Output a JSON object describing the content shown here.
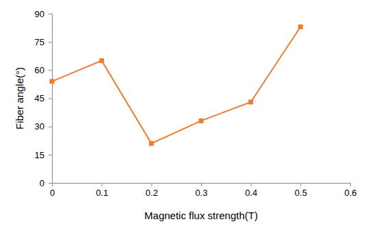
{
  "chart_data": {
    "type": "line",
    "x": [
      0,
      0.1,
      0.2,
      0.3,
      0.4,
      0.5
    ],
    "values": [
      54,
      65,
      21,
      33,
      43,
      83
    ],
    "color": "#ed7d31",
    "marker": "square",
    "xlabel": "Magnetic flux strength(T)",
    "ylabel": "Fiber angle(°)",
    "xlim": [
      0,
      0.6
    ],
    "xticks": [
      0,
      0.1,
      0.2,
      0.3,
      0.4,
      0.5,
      0.6
    ],
    "ylim": [
      0,
      90
    ],
    "yticks": [
      0,
      15,
      30,
      45,
      60,
      75,
      90
    ],
    "grid": false
  }
}
